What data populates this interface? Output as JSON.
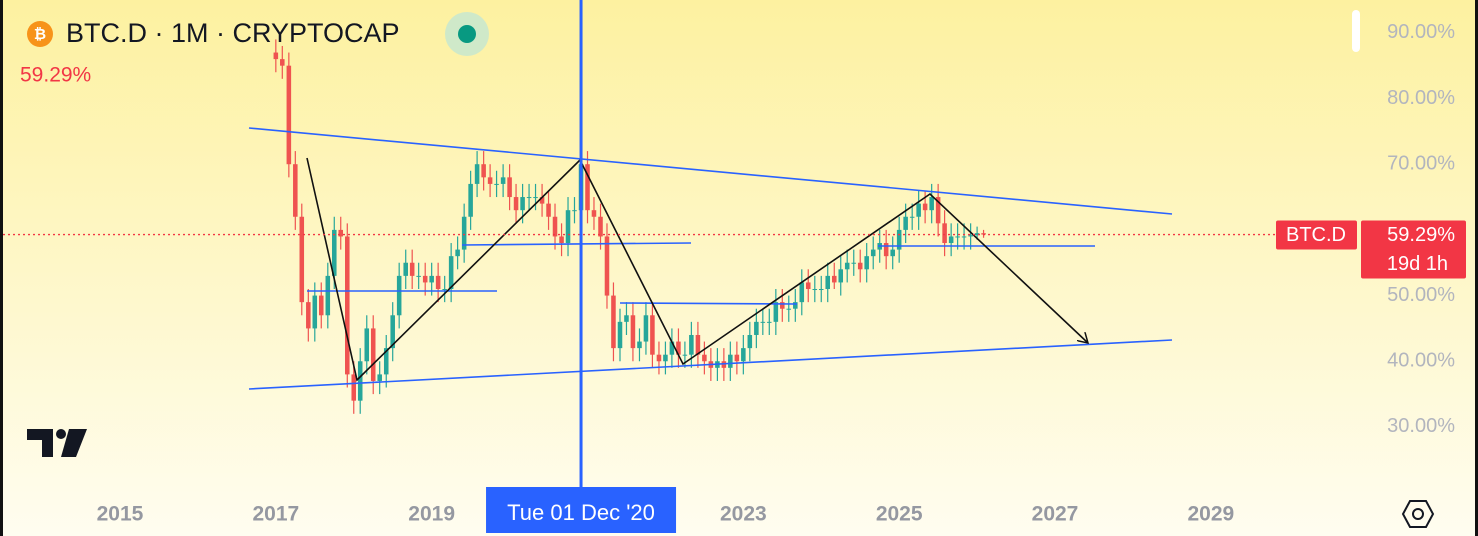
{
  "chart_data": {
    "type": "candlestick",
    "title": "BTC.D · 1M · CRYPTOCAP",
    "up_color": "#26a69a",
    "down_color": "#ef5350",
    "x": [
      2017,
      2017.083,
      2017.167,
      2017.25,
      2017.333,
      2017.417,
      2017.5,
      2017.583,
      2017.667,
      2017.75,
      2017.833,
      2017.917,
      2018,
      2018.083,
      2018.167,
      2018.25,
      2018.333,
      2018.417,
      2018.5,
      2018.583,
      2018.667,
      2018.75,
      2018.833,
      2018.917,
      2019,
      2019.083,
      2019.167,
      2019.25,
      2019.333,
      2019.417,
      2019.5,
      2019.583,
      2019.667,
      2019.75,
      2019.833,
      2019.917,
      2020,
      2020.083,
      2020.167,
      2020.25,
      2020.333,
      2020.417,
      2020.5,
      2020.583,
      2020.667,
      2020.75,
      2020.833,
      2020.917,
      2021,
      2021.083,
      2021.167,
      2021.25,
      2021.333,
      2021.417,
      2021.5,
      2021.583,
      2021.667,
      2021.75,
      2021.833,
      2021.917,
      2022,
      2022.083,
      2022.167,
      2022.25,
      2022.333,
      2022.417,
      2022.5,
      2022.583,
      2022.667,
      2022.75,
      2022.833,
      2022.917,
      2023,
      2023.083,
      2023.167,
      2023.25,
      2023.333,
      2023.417,
      2023.5,
      2023.583,
      2023.667,
      2023.75,
      2023.833,
      2023.917,
      2024,
      2024.083,
      2024.167,
      2024.25,
      2024.333,
      2024.417,
      2024.5,
      2024.583,
      2024.667,
      2024.75,
      2024.833,
      2024.917,
      2025,
      2025.083,
      2025.167,
      2025.25,
      2025.333,
      2025.417,
      2025.5,
      2025.583,
      2025.667,
      2025.75,
      2025.833,
      2025.917,
      2026,
      2026.083
    ],
    "open": [
      87,
      86,
      85,
      70,
      62,
      49,
      45,
      50,
      47,
      53,
      60,
      59,
      38,
      34,
      40,
      45,
      37,
      38,
      42,
      47,
      53,
      55,
      53,
      53,
      52,
      53,
      51,
      51,
      56,
      57,
      62,
      67,
      70,
      68,
      67,
      67,
      68,
      65,
      63,
      65,
      65,
      65,
      64,
      62,
      59,
      58,
      63,
      63,
      70,
      63,
      62,
      59,
      50,
      42,
      46,
      47,
      42,
      43,
      47,
      41,
      40,
      41,
      43,
      41,
      41,
      44,
      41,
      40,
      39,
      40,
      39,
      41,
      40,
      42,
      44,
      46,
      46,
      46,
      49,
      48,
      48,
      49,
      52,
      51,
      51,
      51,
      53,
      52,
      54,
      55,
      55,
      54,
      56,
      57,
      58,
      56,
      57,
      60,
      62,
      62,
      64,
      63,
      65,
      61,
      58,
      59,
      59,
      59,
      59.2,
      59.5
    ],
    "high": [
      89,
      88,
      87,
      72,
      64,
      51,
      52,
      52,
      55,
      62,
      62,
      61,
      40,
      42,
      47,
      47,
      40,
      44,
      49,
      55,
      57,
      57,
      55,
      55,
      55,
      55,
      53,
      58,
      59,
      64,
      69,
      72,
      72,
      70,
      69,
      70,
      70,
      67,
      67,
      67,
      67,
      67,
      66,
      64,
      61,
      65,
      65,
      72,
      72,
      65,
      64,
      61,
      52,
      48,
      49,
      49,
      45,
      49,
      49,
      43,
      43,
      45,
      45,
      43,
      46,
      46,
      43,
      42,
      42,
      42,
      43,
      43,
      44,
      46,
      48,
      48,
      48,
      51,
      51,
      50,
      51,
      54,
      54,
      53,
      53,
      55,
      55,
      56,
      57,
      57,
      57,
      58,
      59,
      60,
      60,
      59,
      62,
      64,
      64,
      66,
      66,
      67,
      67,
      63,
      61,
      61,
      61,
      61,
      60.5,
      60
    ],
    "low": [
      84,
      83,
      68,
      60,
      47,
      43,
      43,
      45,
      45,
      51,
      57,
      36,
      32,
      32,
      38,
      35,
      35,
      36,
      40,
      45,
      51,
      51,
      51,
      50,
      50,
      49,
      49,
      49,
      54,
      55,
      60,
      65,
      66,
      65,
      65,
      65,
      63,
      61,
      61,
      63,
      63,
      62,
      60,
      57,
      56,
      56,
      61,
      61,
      61,
      60,
      57,
      48,
      40,
      40,
      44,
      40,
      40,
      41,
      39,
      38,
      38,
      39,
      39,
      39,
      39,
      39,
      38,
      37,
      37,
      37,
      37,
      38,
      38,
      40,
      42,
      44,
      44,
      44,
      46,
      46,
      46,
      47,
      49,
      49,
      49,
      49,
      51,
      50,
      52,
      53,
      52,
      52,
      54,
      55,
      54,
      54,
      55,
      58,
      60,
      60,
      61,
      61,
      59,
      56,
      56,
      57,
      57,
      57,
      58.5,
      58.8
    ],
    "close": [
      86,
      85,
      70,
      62,
      49,
      45,
      50,
      47,
      53,
      60,
      59,
      38,
      34,
      40,
      45,
      37,
      38,
      42,
      47,
      53,
      55,
      53,
      53,
      52,
      53,
      51,
      51,
      56,
      57,
      62,
      67,
      70,
      68,
      67,
      67,
      68,
      65,
      63,
      65,
      65,
      65,
      64,
      62,
      59,
      58,
      63,
      63,
      70,
      63,
      62,
      59,
      50,
      42,
      46,
      47,
      42,
      43,
      47,
      41,
      40,
      41,
      43,
      41,
      41,
      44,
      41,
      40,
      39,
      40,
      39,
      41,
      40,
      42,
      44,
      46,
      46,
      46,
      49,
      48,
      48,
      49,
      52,
      51,
      51,
      51,
      53,
      52,
      54,
      55,
      55,
      54,
      56,
      57,
      58,
      56,
      57,
      60,
      62,
      62,
      64,
      63,
      65,
      61,
      58,
      59,
      59,
      59,
      59.2,
      59.5,
      59.29
    ],
    "xlim": [
      2013.46,
      2030.85
    ],
    "xticks": [
      2015,
      2017,
      2019,
      2023,
      2025,
      2027,
      2029
    ],
    "ylim": [
      20.4,
      95.0
    ],
    "yticks": [
      {
        "value": 90,
        "label": "90.00%"
      },
      {
        "value": 80,
        "label": "80.00%"
      },
      {
        "value": 70,
        "label": "70.00%"
      },
      {
        "value": 50,
        "label": "50.00%"
      },
      {
        "value": 40,
        "label": "40.00%"
      },
      {
        "value": 30,
        "label": "30.00%"
      }
    ],
    "price_tag": {
      "symbol": "BTC.D",
      "value": 59.29,
      "label": "59.29%",
      "countdown": "19d 1h"
    },
    "crosshair": {
      "x": 2020.917,
      "label": "Tue 01 Dec '20"
    }
  }
}
